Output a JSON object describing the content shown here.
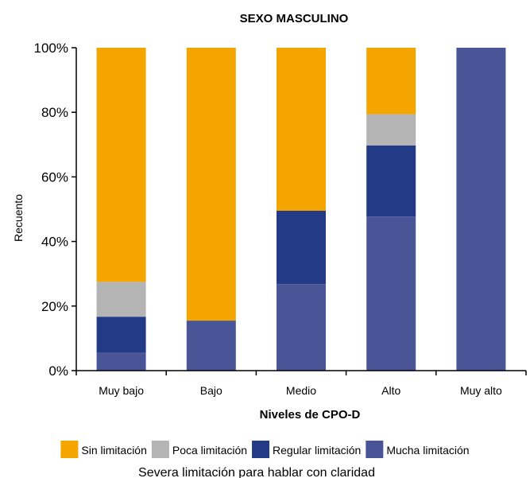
{
  "chart_data": {
    "type": "bar",
    "stacked": true,
    "normalized": true,
    "title": "SEXO MASCULINO",
    "xlabel": "Niveles de CPO-D",
    "ylabel": "Recuento",
    "ylim": [
      0,
      100
    ],
    "yticks": [
      "0%",
      "20%",
      "40%",
      "60%",
      "80%",
      "100%"
    ],
    "categories": [
      "Muy bajo",
      "Bajo",
      "Medio",
      "Alto",
      "Muy alto"
    ],
    "legend_title": "Severa limitación para hablar con claridad",
    "legend_position": "bottom",
    "series": [
      {
        "name": "Mucha limitación",
        "color": "#4a5598",
        "values": [
          5.5,
          15.5,
          26.8,
          47.7,
          100
        ]
      },
      {
        "name": "Regular limitación",
        "color": "#233a86",
        "values": [
          11.2,
          0,
          22.7,
          22.0,
          0
        ]
      },
      {
        "name": "Poca limitación",
        "color": "#b4b4b4",
        "values": [
          10.8,
          0,
          0,
          9.7,
          0
        ]
      },
      {
        "name": "Sin limitación",
        "color": "#f5a500",
        "values": [
          72.5,
          84.5,
          50.5,
          20.6,
          0
        ]
      }
    ],
    "legend_order": [
      3,
      2,
      1,
      0
    ]
  }
}
